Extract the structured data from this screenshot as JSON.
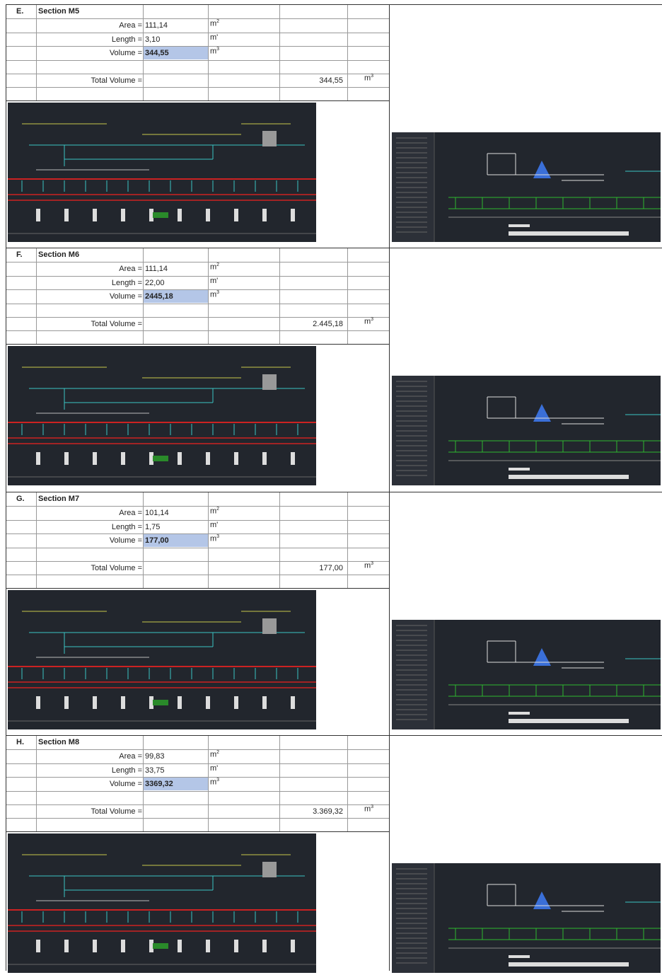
{
  "sections": [
    {
      "letter": "E.",
      "title": "Section M5",
      "rows": [
        {
          "label": "Area =",
          "value": "111,14",
          "unit": "m",
          "unit_sup": "2"
        },
        {
          "label": "Length =",
          "value": "3,10",
          "unit": "m'"
        },
        {
          "label": "Volume =",
          "value": "344,55",
          "unit": "m",
          "unit_sup": "3"
        }
      ],
      "total_label": "Total Volume =",
      "total": "344,55",
      "total_unit": "m",
      "total_unit_sup": "3"
    },
    {
      "letter": "F.",
      "title": "Section M6",
      "rows": [
        {
          "label": "Area =",
          "value": "111,14",
          "unit": "m",
          "unit_sup": "2"
        },
        {
          "label": "Length =",
          "value": "22,00",
          "unit": "m'"
        },
        {
          "label": "Volume =",
          "value": "2445,18",
          "unit": "m",
          "unit_sup": "3"
        }
      ],
      "total_label": "Total Volume =",
      "total": "2.445,18",
      "total_unit": "m",
      "total_unit_sup": "3"
    },
    {
      "letter": "G.",
      "title": "Section M7",
      "rows": [
        {
          "label": "Area =",
          "value": "101,14",
          "unit": "m",
          "unit_sup": "2"
        },
        {
          "label": "Length =",
          "value": "1,75",
          "unit": "m'"
        },
        {
          "label": "Volume =",
          "value": "177,00",
          "unit": "m",
          "unit_sup": "3"
        }
      ],
      "total_label": "Total Volume =",
      "total": "177,00",
      "total_unit": "m",
      "total_unit_sup": "3"
    },
    {
      "letter": "H.",
      "title": "Section M8",
      "rows": [
        {
          "label": "Area =",
          "value": "99,83",
          "unit": "m",
          "unit_sup": "2"
        },
        {
          "label": "Length =",
          "value": "33,75",
          "unit": "m'"
        },
        {
          "label": "Volume =",
          "value": "3369,32",
          "unit": "m",
          "unit_sup": "3"
        }
      ],
      "total_label": "Total Volume =",
      "total": "3.369,32",
      "total_unit": "m",
      "total_unit_sup": "3"
    }
  ]
}
